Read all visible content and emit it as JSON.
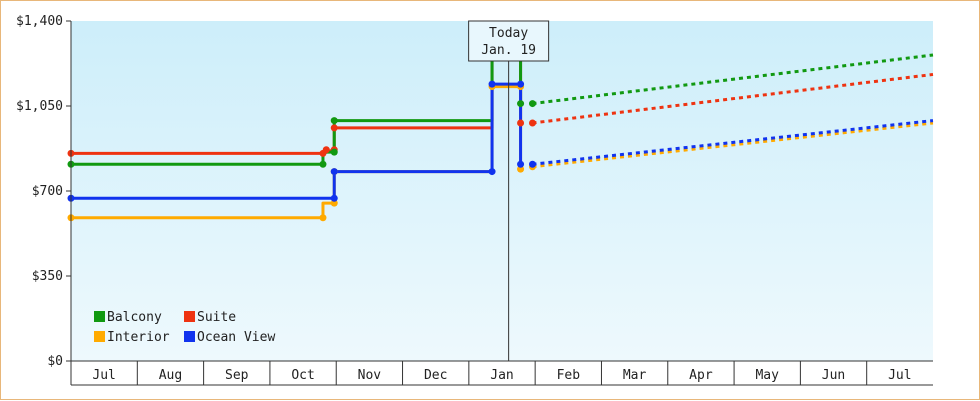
{
  "chart_data": {
    "type": "line",
    "title": "",
    "xlabel": "",
    "ylabel": "",
    "ylim": [
      0,
      1400
    ],
    "y_ticks": [
      0,
      350,
      700,
      1050,
      1400
    ],
    "y_tick_labels": [
      "$0",
      "$350",
      "$700",
      "$1,050",
      "$1,400"
    ],
    "x_tick_labels": [
      "Jul",
      "Aug",
      "Sep",
      "Oct",
      "Nov",
      "Dec",
      "Jan",
      "Feb",
      "Mar",
      "Apr",
      "May",
      "Jun",
      "Jul"
    ],
    "x_unit": "months since start of July",
    "grid": false,
    "legend_position": "bottom-left",
    "today_marker": {
      "line1": "Today",
      "line2": "Jan. 19",
      "x": 6.6
    },
    "series": [
      {
        "name": "Balcony",
        "color": "#119911",
        "history": [
          [
            0,
            810
          ],
          [
            3.8,
            810
          ],
          [
            3.8,
            860
          ],
          [
            3.97,
            860
          ],
          [
            3.97,
            990
          ],
          [
            6.35,
            990
          ],
          [
            6.35,
            1330
          ],
          [
            6.78,
            1330
          ],
          [
            6.78,
            1060
          ]
        ],
        "markers": [
          [
            0,
            810
          ],
          [
            3.8,
            810
          ],
          [
            3.97,
            860
          ],
          [
            3.97,
            990
          ],
          [
            6.35,
            1330
          ],
          [
            6.78,
            1330
          ],
          [
            6.78,
            1060
          ],
          [
            6.96,
            1060
          ]
        ],
        "forecast": [
          [
            6.96,
            1060
          ],
          [
            13,
            1260
          ]
        ]
      },
      {
        "name": "Suite",
        "color": "#ee3311",
        "history": [
          [
            0,
            855
          ],
          [
            3.8,
            855
          ],
          [
            3.97,
            870
          ],
          [
            3.97,
            960
          ],
          [
            6.35,
            960
          ],
          [
            6.35,
            1250
          ],
          [
            6.78,
            1250
          ],
          [
            6.78,
            980
          ]
        ],
        "markers": [
          [
            0,
            855
          ],
          [
            3.8,
            855
          ],
          [
            3.85,
            870
          ],
          [
            3.97,
            870
          ],
          [
            3.97,
            960
          ],
          [
            6.35,
            1250
          ],
          [
            6.78,
            1250
          ],
          [
            6.78,
            980
          ],
          [
            6.96,
            980
          ]
        ],
        "forecast": [
          [
            6.96,
            980
          ],
          [
            13,
            1180
          ]
        ]
      },
      {
        "name": "Interior",
        "color": "#ffaa00",
        "history": [
          [
            0,
            590
          ],
          [
            3.8,
            590
          ],
          [
            3.8,
            650
          ],
          [
            3.97,
            650
          ],
          [
            3.97,
            780
          ],
          [
            6.35,
            780
          ],
          [
            6.35,
            1130
          ],
          [
            6.78,
            1130
          ],
          [
            6.78,
            790
          ]
        ],
        "markers": [
          [
            0,
            590
          ],
          [
            3.8,
            590
          ],
          [
            3.97,
            650
          ],
          [
            3.97,
            780
          ],
          [
            6.35,
            1130
          ],
          [
            6.78,
            1130
          ],
          [
            6.78,
            790
          ],
          [
            6.96,
            800
          ]
        ],
        "forecast": [
          [
            6.96,
            800
          ],
          [
            13,
            980
          ]
        ]
      },
      {
        "name": "Ocean View",
        "color": "#1133ee",
        "history": [
          [
            0,
            670
          ],
          [
            3.97,
            670
          ],
          [
            3.97,
            780
          ],
          [
            6.35,
            780
          ],
          [
            6.35,
            1140
          ],
          [
            6.78,
            1140
          ],
          [
            6.78,
            810
          ]
        ],
        "markers": [
          [
            0,
            670
          ],
          [
            3.97,
            670
          ],
          [
            3.97,
            780
          ],
          [
            6.35,
            780
          ],
          [
            6.35,
            1140
          ],
          [
            6.78,
            1140
          ],
          [
            6.78,
            810
          ],
          [
            6.96,
            810
          ]
        ],
        "forecast": [
          [
            6.96,
            810
          ],
          [
            13,
            990
          ]
        ]
      }
    ]
  }
}
